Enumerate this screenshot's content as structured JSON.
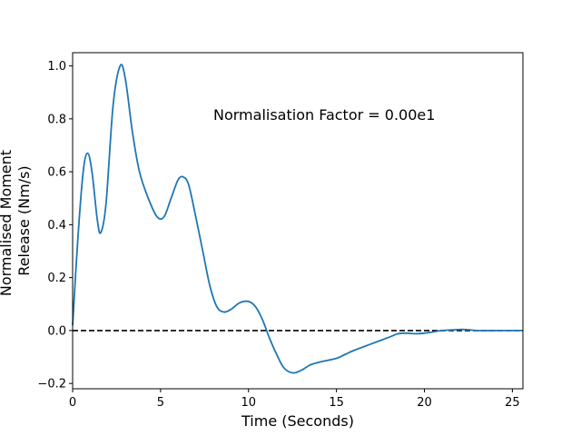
{
  "chart_data": {
    "type": "line",
    "xlabel": "Time (Seconds)",
    "ylabel_lines": [
      "Normalised Moment",
      "Release (Nm/s)"
    ],
    "annotation": "Normalisation Factor = 0.00e1",
    "xlim": [
      0,
      25.6
    ],
    "ylim": [
      -0.22,
      1.05
    ],
    "xticks": [
      0,
      5,
      10,
      15,
      20,
      25
    ],
    "yticks": [
      -0.2,
      0.0,
      0.2,
      0.4,
      0.6,
      0.8,
      1.0
    ],
    "xtick_labels": [
      "0",
      "5",
      "10",
      "15",
      "20",
      "25"
    ],
    "ytick_labels": [
      "−0.2",
      "0.0",
      "0.2",
      "0.4",
      "0.6",
      "0.8",
      "1.0"
    ],
    "grid": false,
    "reference_line": {
      "y": 0,
      "style": "dashed",
      "color": "#000000"
    },
    "series": [
      {
        "color": "#1f77b4",
        "x": [
          0,
          0.3,
          0.6,
          0.85,
          1.1,
          1.4,
          1.6,
          1.9,
          2.3,
          2.7,
          3.0,
          3.4,
          3.8,
          4.3,
          4.8,
          5.2,
          5.6,
          6.0,
          6.3,
          6.6,
          7.0,
          7.4,
          7.8,
          8.2,
          8.6,
          9.0,
          9.5,
          10.0,
          10.4,
          10.8,
          11.2,
          11.6,
          12.0,
          12.5,
          13.0,
          13.5,
          14.0,
          15.0,
          15.5,
          16.0,
          17.0,
          18.0,
          18.5,
          19.0,
          19.5,
          20.0,
          20.5,
          21.0,
          22.0,
          22.5,
          23.0,
          24.0,
          25.0,
          25.6
        ],
        "y": [
          0.02,
          0.35,
          0.6,
          0.67,
          0.6,
          0.42,
          0.37,
          0.48,
          0.85,
          1.0,
          0.95,
          0.75,
          0.6,
          0.5,
          0.43,
          0.43,
          0.5,
          0.57,
          0.58,
          0.55,
          0.43,
          0.3,
          0.17,
          0.09,
          0.07,
          0.08,
          0.105,
          0.11,
          0.09,
          0.04,
          -0.03,
          -0.09,
          -0.14,
          -0.16,
          -0.15,
          -0.13,
          -0.12,
          -0.105,
          -0.09,
          -0.075,
          -0.05,
          -0.025,
          -0.012,
          -0.01,
          -0.012,
          -0.01,
          -0.005,
          0.0,
          0.004,
          0.003,
          0.0,
          0.0,
          0.0,
          0.0
        ]
      }
    ]
  }
}
